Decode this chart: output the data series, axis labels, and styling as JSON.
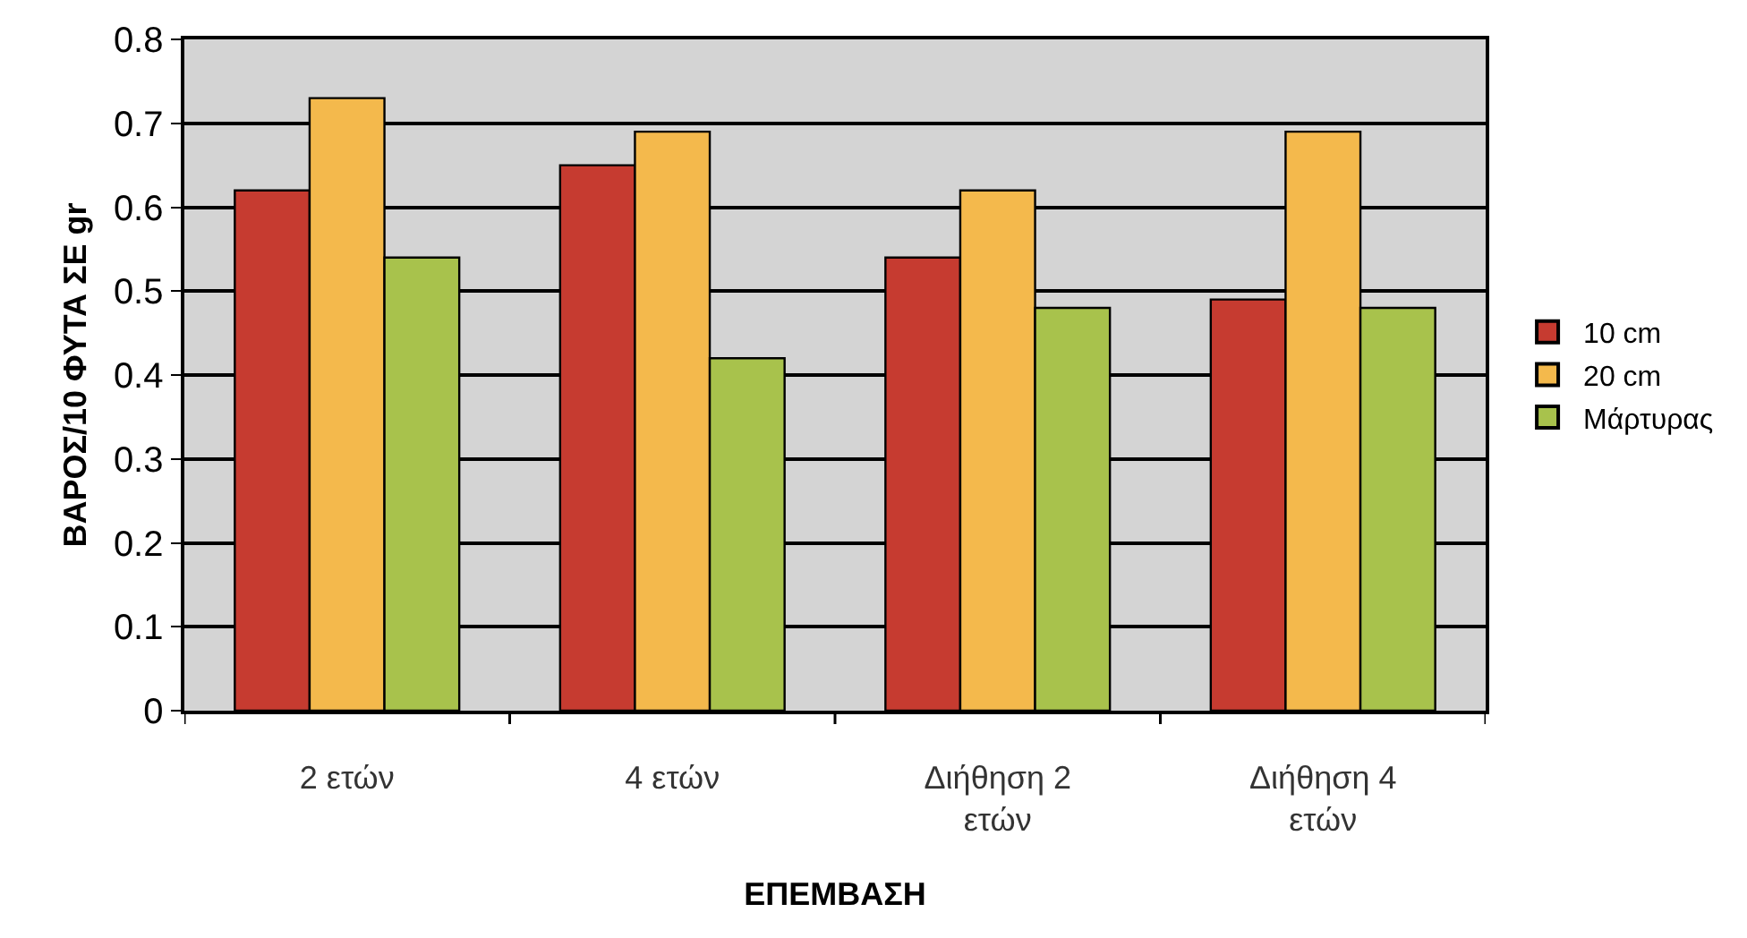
{
  "chart_data": {
    "type": "bar",
    "xlabel": "ΕΠΕΜΒΑΣΗ",
    "ylabel": "ΒΑΡΟΣ/10 ΦΥΤΑ ΣΕ gr",
    "categories": [
      "2 ετών",
      "4 ετών",
      "Διήθηση 2 ετών",
      "Διήθηση 4 ετών"
    ],
    "series": [
      {
        "name": "10 cm",
        "color": "#c63b30",
        "values": [
          0.62,
          0.65,
          0.54,
          0.49
        ]
      },
      {
        "name": "20 cm",
        "color": "#f4b94c",
        "values": [
          0.73,
          0.69,
          0.62,
          0.69
        ]
      },
      {
        "name": "Μάρτυρας",
        "color": "#a8c24c",
        "values": [
          0.54,
          0.42,
          0.48,
          0.48
        ]
      }
    ],
    "ylim": [
      0,
      0.8
    ],
    "yticks": [
      0,
      0.1,
      0.2,
      0.3,
      0.4,
      0.5,
      0.6,
      0.7,
      0.8
    ],
    "grid": "y",
    "legend": "right"
  }
}
